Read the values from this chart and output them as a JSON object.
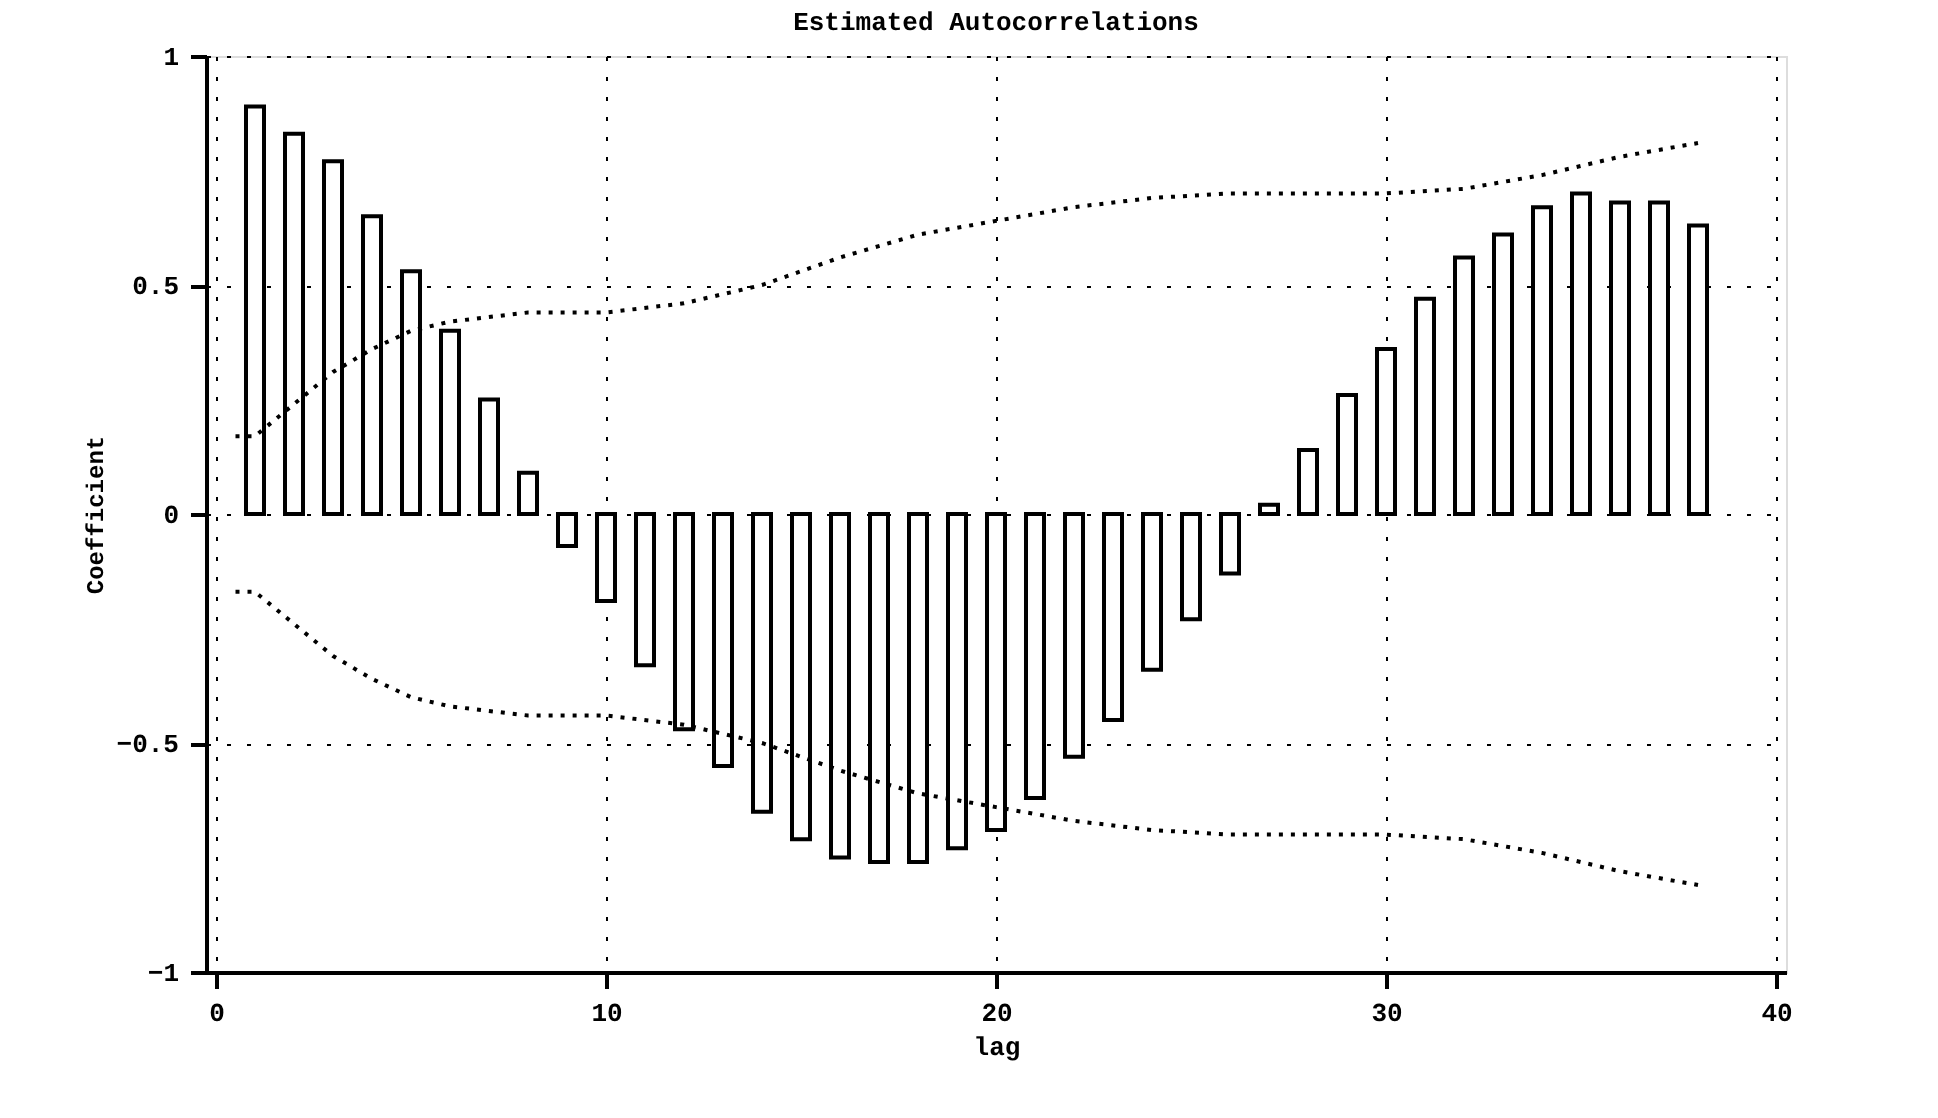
{
  "chart_data": {
    "type": "bar",
    "title": "Estimated Autocorrelations",
    "xlabel": "lag",
    "ylabel": "Coefficient",
    "x": [
      1,
      2,
      3,
      4,
      5,
      6,
      7,
      8,
      9,
      10,
      11,
      12,
      13,
      14,
      15,
      16,
      17,
      18,
      19,
      20,
      21,
      22,
      23,
      24,
      25,
      26,
      27,
      28,
      29,
      30,
      31,
      32,
      33,
      34,
      35,
      36,
      37,
      38
    ],
    "series": [
      {
        "color": "#000000",
        "values": [
          0.89,
          0.83,
          0.77,
          0.65,
          0.53,
          0.4,
          0.25,
          0.09,
          -0.07,
          -0.19,
          -0.33,
          -0.47,
          -0.55,
          -0.65,
          -0.71,
          -0.75,
          -0.76,
          -0.76,
          -0.73,
          -0.69,
          -0.62,
          -0.53,
          -0.45,
          -0.34,
          -0.23,
          -0.13,
          0.02,
          0.14,
          0.26,
          0.36,
          0.47,
          0.56,
          0.61,
          0.67,
          0.7,
          0.68,
          0.68,
          0.63
        ]
      },
      {
        "type": "line",
        "color": "#000000",
        "line_style": "dotted",
        "x": [
          0.5,
          1,
          2,
          3,
          4,
          5,
          6,
          7,
          8,
          10,
          12,
          14,
          16,
          18,
          20,
          22,
          24,
          26,
          30,
          32,
          34,
          36,
          38
        ],
        "values": [
          0.17,
          0.17,
          0.24,
          0.31,
          0.36,
          0.4,
          0.42,
          0.43,
          0.44,
          0.44,
          0.46,
          0.5,
          0.56,
          0.61,
          0.64,
          0.67,
          0.69,
          0.7,
          0.7,
          0.71,
          0.74,
          0.78,
          0.81
        ]
      },
      {
        "type": "line",
        "color": "#000000",
        "line_style": "dotted",
        "x": [
          0.5,
          1,
          2,
          3,
          4,
          5,
          6,
          7,
          8,
          10,
          12,
          14,
          16,
          18,
          20,
          22,
          24,
          26,
          30,
          32,
          34,
          36,
          38
        ],
        "values": [
          -0.17,
          -0.17,
          -0.24,
          -0.31,
          -0.36,
          -0.4,
          -0.42,
          -0.43,
          -0.44,
          -0.44,
          -0.46,
          -0.5,
          -0.56,
          -0.61,
          -0.64,
          -0.67,
          -0.69,
          -0.7,
          -0.7,
          -0.71,
          -0.74,
          -0.78,
          -0.81
        ]
      }
    ],
    "xlim": [
      0,
      40
    ],
    "xticks": [
      0,
      10,
      20,
      30,
      40
    ],
    "ylim": [
      -1,
      1
    ],
    "yticks": [
      -1,
      -0.5,
      0,
      0.5,
      1
    ],
    "grid": true
  }
}
